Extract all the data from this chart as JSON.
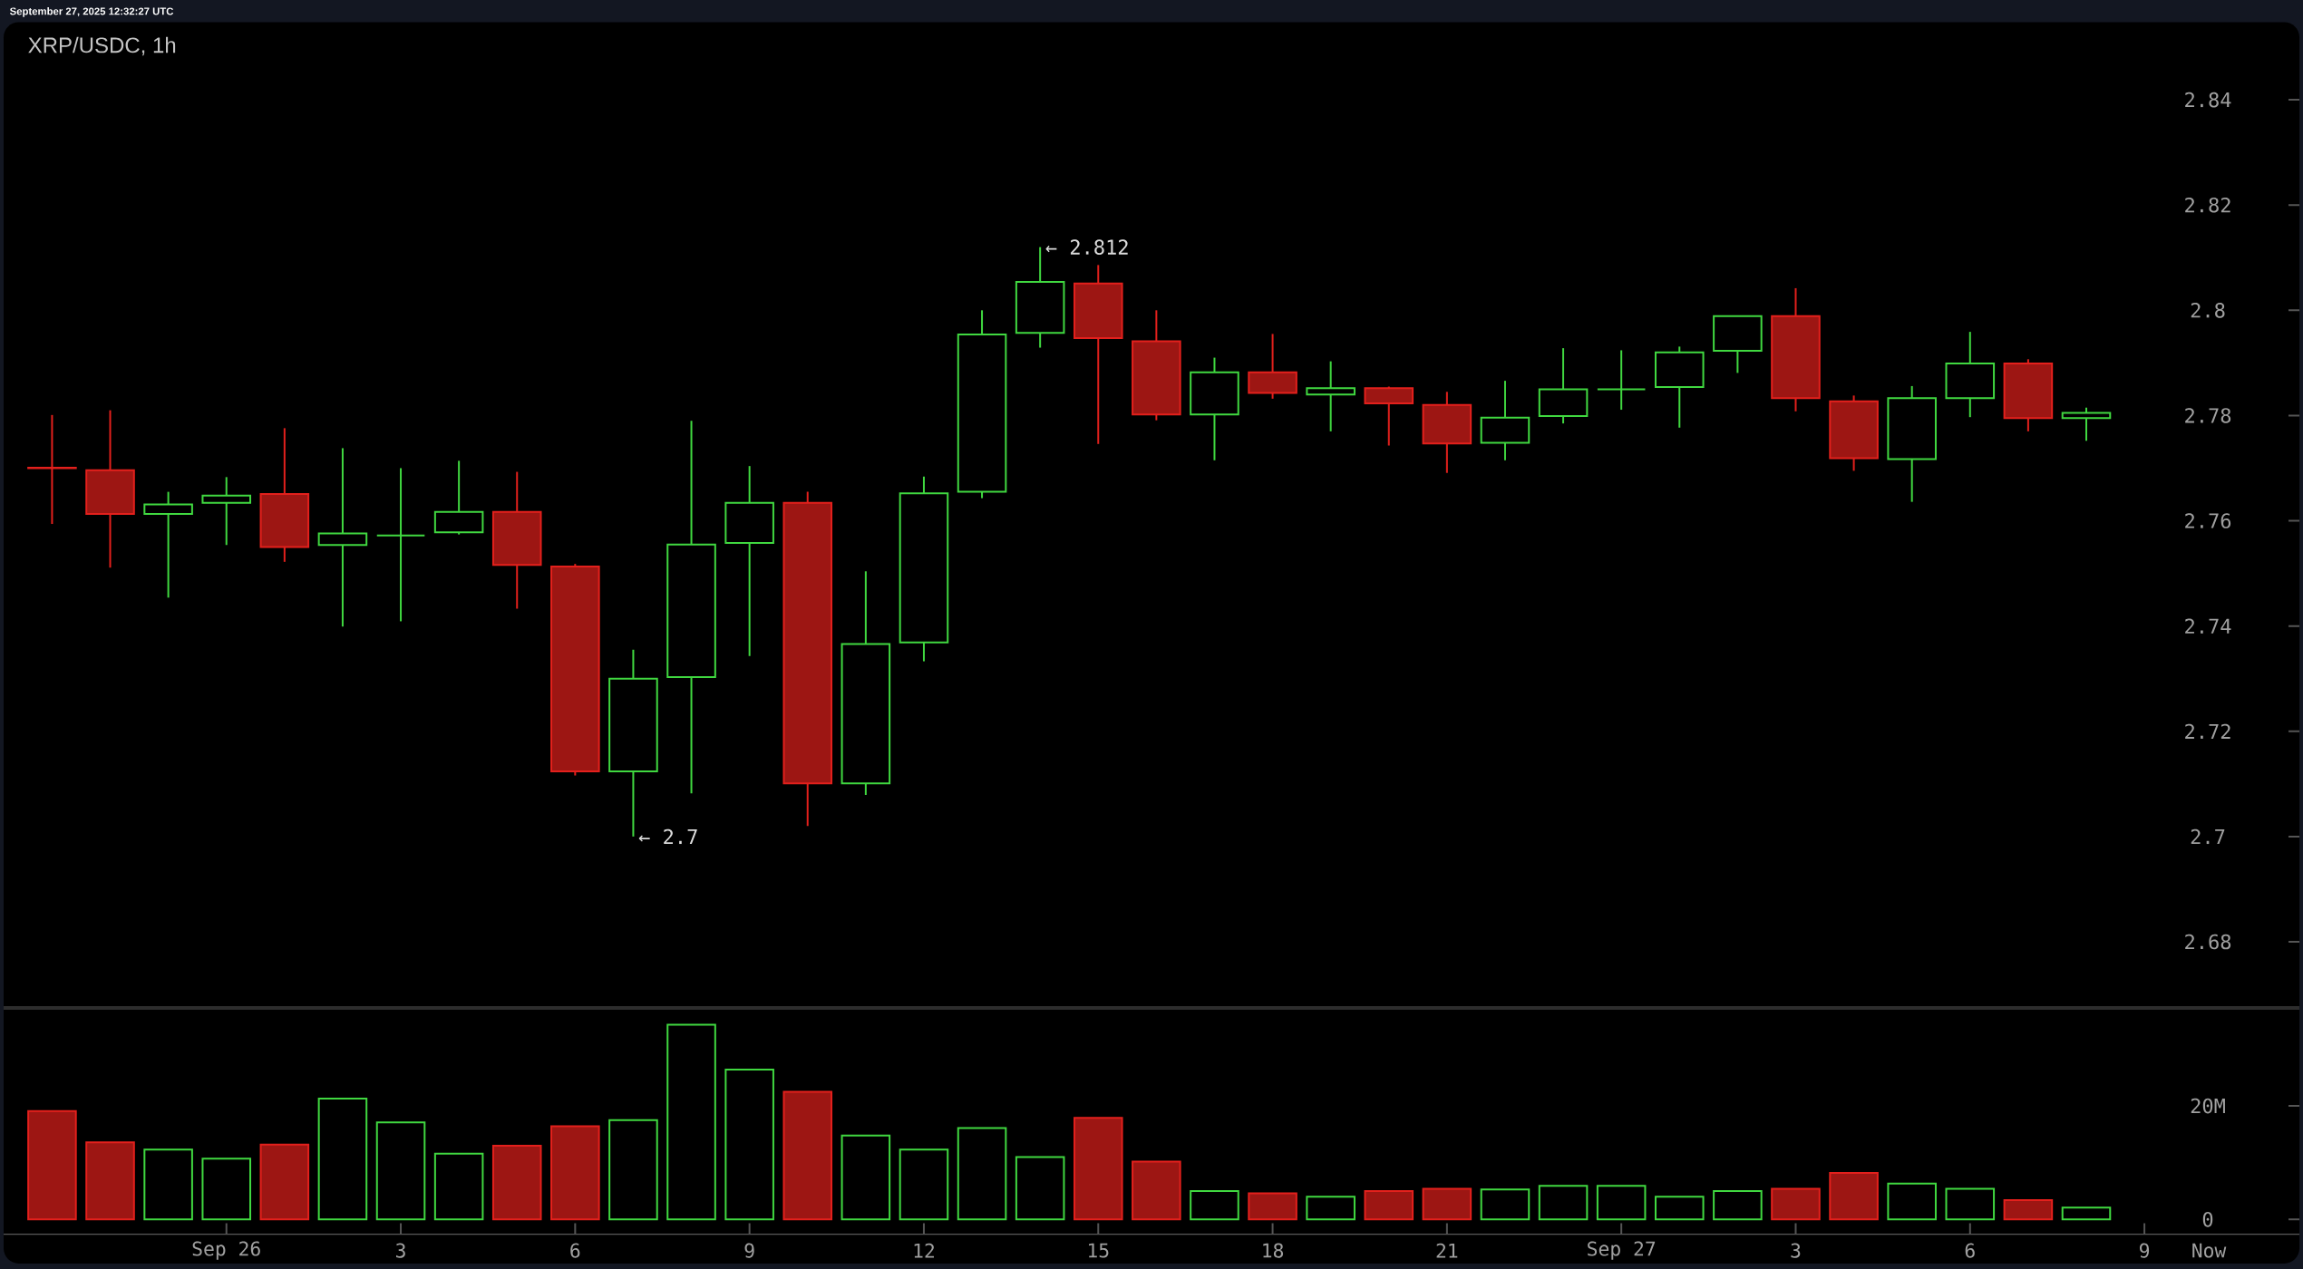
{
  "chart_data": [
    {
      "type": "candlestick",
      "title": "XRP/USDC, 1h",
      "annotations": [
        "September 27, 2025 12:32:27 UTC",
        {
          "text": "← 2.812",
          "x": "2025-09-26T14:00",
          "y": 2.812
        },
        {
          "text": "← 2.7",
          "x": "2025-09-26T07:00",
          "y": 2.7
        }
      ],
      "x": [
        "2025-09-25T21:00",
        "2025-09-25T22:00",
        "2025-09-25T23:00",
        "2025-09-26T00:00",
        "2025-09-26T01:00",
        "2025-09-26T02:00",
        "2025-09-26T03:00",
        "2025-09-26T04:00",
        "2025-09-26T05:00",
        "2025-09-26T06:00",
        "2025-09-26T07:00",
        "2025-09-26T08:00",
        "2025-09-26T09:00",
        "2025-09-26T10:00",
        "2025-09-26T11:00",
        "2025-09-26T12:00",
        "2025-09-26T13:00",
        "2025-09-26T14:00",
        "2025-09-26T15:00",
        "2025-09-26T16:00",
        "2025-09-26T17:00",
        "2025-09-26T18:00",
        "2025-09-26T19:00",
        "2025-09-26T20:00",
        "2025-09-26T21:00",
        "2025-09-26T22:00",
        "2025-09-26T23:00",
        "2025-09-27T00:00",
        "2025-09-27T01:00",
        "2025-09-27T02:00",
        "2025-09-27T03:00",
        "2025-09-27T04:00",
        "2025-09-27T05:00",
        "2025-09-27T06:00",
        "2025-09-27T07:00",
        "2025-09-27T08:00"
      ],
      "ohlc": [
        [
          2.7701,
          2.7801,
          2.7594,
          2.77
        ],
        [
          2.7696,
          2.781,
          2.7511,
          2.7613
        ],
        [
          2.7613,
          2.7655,
          2.7454,
          2.7631
        ],
        [
          2.7634,
          2.7683,
          2.7554,
          2.7648
        ],
        [
          2.7651,
          2.7776,
          2.7522,
          2.755
        ],
        [
          2.7554,
          2.7738,
          2.7399,
          2.7576
        ],
        [
          2.7572,
          2.77,
          2.7409,
          2.7572
        ],
        [
          2.7578,
          2.7714,
          2.7574,
          2.7617
        ],
        [
          2.7617,
          2.7693,
          2.7433,
          2.7516
        ],
        [
          2.7513,
          2.7518,
          2.7116,
          2.7124
        ],
        [
          2.7124,
          2.7355,
          2.7,
          2.73
        ],
        [
          2.7303,
          2.779,
          2.7082,
          2.7555
        ],
        [
          2.7558,
          2.7704,
          2.7343,
          2.7634
        ],
        [
          2.7634,
          2.7655,
          2.702,
          2.7101
        ],
        [
          2.7101,
          2.7504,
          2.7079,
          2.7366
        ],
        [
          2.7369,
          2.7684,
          2.7333,
          2.7652
        ],
        [
          2.7655,
          2.8,
          2.7643,
          2.7954
        ],
        [
          2.7957,
          2.812,
          2.7929,
          2.8054
        ],
        [
          2.8051,
          2.8086,
          2.7746,
          2.7947
        ],
        [
          2.7941,
          2.8,
          2.7791,
          2.7802
        ],
        [
          2.7802,
          2.791,
          2.7715,
          2.7882
        ],
        [
          2.7882,
          2.7955,
          2.7832,
          2.7843
        ],
        [
          2.784,
          2.7903,
          2.777,
          2.7852
        ],
        [
          2.7852,
          2.7855,
          2.7743,
          2.7823
        ],
        [
          2.782,
          2.7845,
          2.7691,
          2.7747
        ],
        [
          2.7748,
          2.7866,
          2.7715,
          2.7796
        ],
        [
          2.7799,
          2.7928,
          2.7785,
          2.785
        ],
        [
          2.785,
          2.7924,
          2.7811,
          2.785
        ],
        [
          2.7854,
          2.7931,
          2.7777,
          2.792
        ],
        [
          2.7923,
          2.7989,
          2.7881,
          2.7989
        ],
        [
          2.7989,
          2.8042,
          2.7808,
          2.7833
        ],
        [
          2.7827,
          2.7838,
          2.7695,
          2.7719
        ],
        [
          2.7717,
          2.7856,
          2.7636,
          2.7833
        ],
        [
          2.7833,
          2.7959,
          2.7797,
          2.7899
        ],
        [
          2.7899,
          2.7907,
          2.777,
          2.7795
        ],
        [
          2.7795,
          2.7815,
          2.7752,
          2.7805
        ]
      ],
      "colors": [
        "#e3201c",
        "#e3201c",
        "#40d840",
        "#40d840",
        "#e3201c",
        "#40d840",
        "#40d840",
        "#40d840",
        "#e3201c",
        "#e3201c",
        "#40d840",
        "#40d840",
        "#40d840",
        "#e3201c",
        "#40d840",
        "#40d840",
        "#40d840",
        "#40d840",
        "#e3201c",
        "#e3201c",
        "#40d840",
        "#e3201c",
        "#40d840",
        "#e3201c",
        "#e3201c",
        "#40d840",
        "#40d840",
        "#40d840",
        "#40d840",
        "#40d840",
        "#e3201c",
        "#e3201c",
        "#40d840",
        "#40d840",
        "#e3201c",
        "#40d840"
      ],
      "xlim": [
        "2025-09-25T20:10",
        "2025-09-27T11:40"
      ],
      "ylim": [
        2.6676,
        2.84
      ],
      "yticks": [
        2.68,
        2.7,
        2.72,
        2.74,
        2.76,
        2.78,
        2.8,
        2.82,
        2.84
      ],
      "tick_labels": "y"
    },
    {
      "type": "bar",
      "annotations": [
        "Now"
      ],
      "x": [
        "2025-09-25T21:00",
        "2025-09-25T22:00",
        "2025-09-25T23:00",
        "2025-09-26T00:00",
        "2025-09-26T01:00",
        "2025-09-26T02:00",
        "2025-09-26T03:00",
        "2025-09-26T04:00",
        "2025-09-26T05:00",
        "2025-09-26T06:00",
        "2025-09-26T07:00",
        "2025-09-26T08:00",
        "2025-09-26T09:00",
        "2025-09-26T10:00",
        "2025-09-26T11:00",
        "2025-09-26T12:00",
        "2025-09-26T13:00",
        "2025-09-26T14:00",
        "2025-09-26T15:00",
        "2025-09-26T16:00",
        "2025-09-26T17:00",
        "2025-09-26T18:00",
        "2025-09-26T19:00",
        "2025-09-26T20:00",
        "2025-09-26T21:00",
        "2025-09-26T22:00",
        "2025-09-26T23:00",
        "2025-09-27T00:00",
        "2025-09-27T01:00",
        "2025-09-27T02:00",
        "2025-09-27T03:00",
        "2025-09-27T04:00",
        "2025-09-27T05:00",
        "2025-09-27T06:00",
        "2025-09-27T07:00",
        "2025-09-27T08:00"
      ],
      "values": [
        19.1,
        13.6,
        12.3,
        10.7,
        13.2,
        21.3,
        17.1,
        11.6,
        13.0,
        16.4,
        17.5,
        34.3,
        26.4,
        22.5,
        14.8,
        12.3,
        16.1,
        11.0,
        17.9,
        10.2,
        5.0,
        4.6,
        4.0,
        5.0,
        5.4,
        5.3,
        5.9,
        5.9,
        4.0,
        5.0,
        5.4,
        8.2,
        6.3,
        5.4,
        3.4,
        2.1
      ],
      "colors": [
        "#e3201c",
        "#e3201c",
        "#40d840",
        "#40d840",
        "#e3201c",
        "#40d840",
        "#40d840",
        "#40d840",
        "#e3201c",
        "#e3201c",
        "#40d840",
        "#40d840",
        "#40d840",
        "#e3201c",
        "#40d840",
        "#40d840",
        "#40d840",
        "#40d840",
        "#e3201c",
        "#e3201c",
        "#40d840",
        "#e3201c",
        "#40d840",
        "#e3201c",
        "#e3201c",
        "#40d840",
        "#40d840",
        "#40d840",
        "#40d840",
        "#40d840",
        "#e3201c",
        "#e3201c",
        "#40d840",
        "#40d840",
        "#e3201c",
        "#40d840"
      ],
      "xlim": [
        "2025-09-25T20:10",
        "2025-09-27T11:40"
      ],
      "xticks": [
        {
          "value": "2025-09-26T00:00",
          "label": "Sep 26"
        },
        {
          "value": "2025-09-26T03:00",
          "label": "3"
        },
        {
          "value": "2025-09-26T06:00",
          "label": "6"
        },
        {
          "value": "2025-09-26T09:00",
          "label": "9"
        },
        {
          "value": "2025-09-26T12:00",
          "label": "12"
        },
        {
          "value": "2025-09-26T15:00",
          "label": "15"
        },
        {
          "value": "2025-09-26T18:00",
          "label": "18"
        },
        {
          "value": "2025-09-26T21:00",
          "label": "21"
        },
        {
          "value": "2025-09-27T00:00",
          "label": "Sep 27"
        },
        {
          "value": "2025-09-27T03:00",
          "label": "3"
        },
        {
          "value": "2025-09-27T06:00",
          "label": "6"
        },
        {
          "value": "2025-09-27T09:00",
          "label": "9"
        }
      ],
      "ylim": [
        -2.6,
        37.1
      ],
      "yticks": [
        0,
        {
          "value": 20,
          "label": "20M"
        }
      ]
    }
  ]
}
